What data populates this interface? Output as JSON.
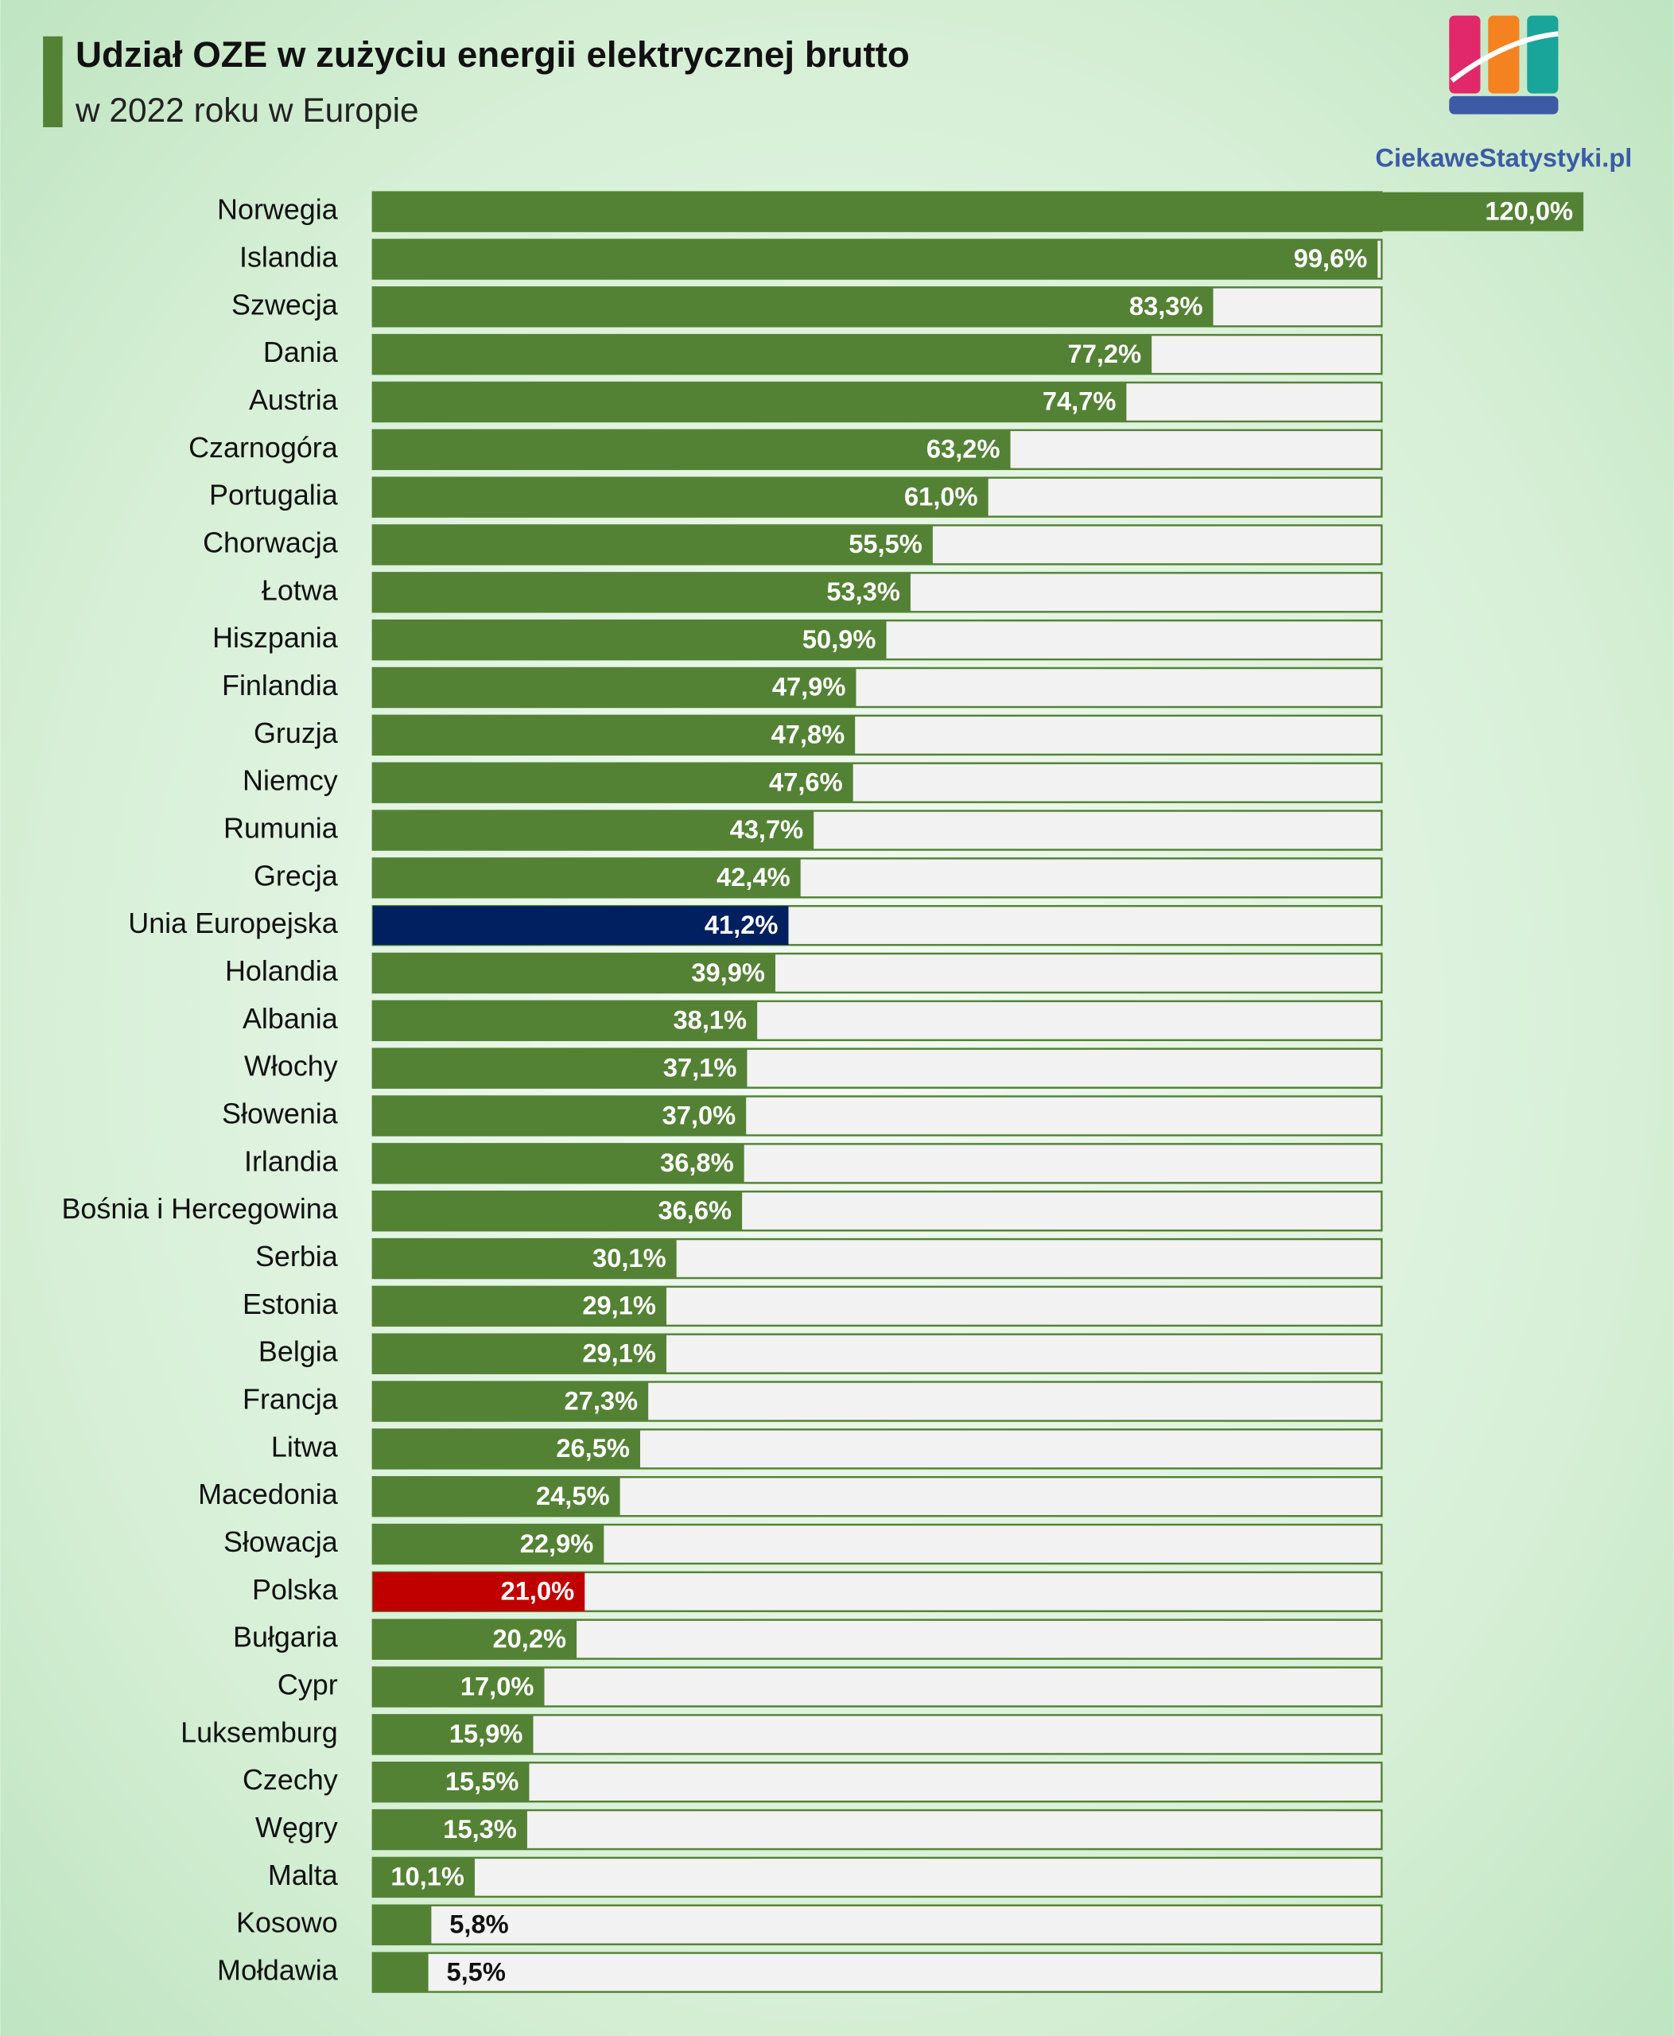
{
  "chart_data": {
    "type": "bar",
    "orientation": "horizontal",
    "title": "Udział OZE w zużyciu energii elektrycznej brutto",
    "subtitle": "w 2022 roku w Europie",
    "logo": "CiekaweStatystyki.pl",
    "categories": [
      "Norwegia",
      "Islandia",
      "Szwecja",
      "Dania",
      "Austria",
      "Czarnogóra",
      "Portugalia",
      "Chorwacja",
      "Łotwa",
      "Hiszpania",
      "Finlandia",
      "Gruzja",
      "Niemcy",
      "Rumunia",
      "Grecja",
      "Unia Europejska",
      "Holandia",
      "Albania",
      "Włochy",
      "Słowenia",
      "Irlandia",
      "Bośnia i Hercegowina",
      "Serbia",
      "Estonia",
      "Belgia",
      "Francja",
      "Litwa",
      "Macedonia",
      "Słowacja",
      "Polska",
      "Bułgaria",
      "Cypr",
      "Luksemburg",
      "Czechy",
      "Węgry",
      "Malta",
      "Kosowo",
      "Mołdawia"
    ],
    "values": [
      120.0,
      99.6,
      83.3,
      77.2,
      74.7,
      63.2,
      61.0,
      55.5,
      53.3,
      50.9,
      47.9,
      47.8,
      47.6,
      43.7,
      42.4,
      41.2,
      39.9,
      38.1,
      37.1,
      37.0,
      36.8,
      36.6,
      30.1,
      29.1,
      29.1,
      27.3,
      26.5,
      24.5,
      22.9,
      21.0,
      20.2,
      17.0,
      15.9,
      15.5,
      15.3,
      10.1,
      5.8,
      5.5
    ],
    "value_labels": [
      "120,0%",
      "99,6%",
      "83,3%",
      "77,2%",
      "74,7%",
      "63,2%",
      "61,0%",
      "55,5%",
      "53,3%",
      "50,9%",
      "47,9%",
      "47,8%",
      "47,6%",
      "43,7%",
      "42,4%",
      "41,2%",
      "39,9%",
      "38,1%",
      "37,1%",
      "37,0%",
      "36,8%",
      "36,6%",
      "30,1%",
      "29,1%",
      "29,1%",
      "27,3%",
      "26,5%",
      "24,5%",
      "22,9%",
      "21,0%",
      "20,2%",
      "17,0%",
      "15,9%",
      "15,5%",
      "15,3%",
      "10,1%",
      "5,8%",
      "5,5%"
    ],
    "colors": [
      "#548235",
      "#548235",
      "#548235",
      "#548235",
      "#548235",
      "#548235",
      "#548235",
      "#548235",
      "#548235",
      "#548235",
      "#548235",
      "#548235",
      "#548235",
      "#548235",
      "#548235",
      "#002060",
      "#548235",
      "#548235",
      "#548235",
      "#548235",
      "#548235",
      "#548235",
      "#548235",
      "#548235",
      "#548235",
      "#548235",
      "#548235",
      "#548235",
      "#548235",
      "#c00000",
      "#548235",
      "#548235",
      "#548235",
      "#548235",
      "#548235",
      "#548235",
      "#548235",
      "#548235"
    ],
    "track_color": "#f2f2f2",
    "xlim": [
      0,
      100
    ]
  }
}
